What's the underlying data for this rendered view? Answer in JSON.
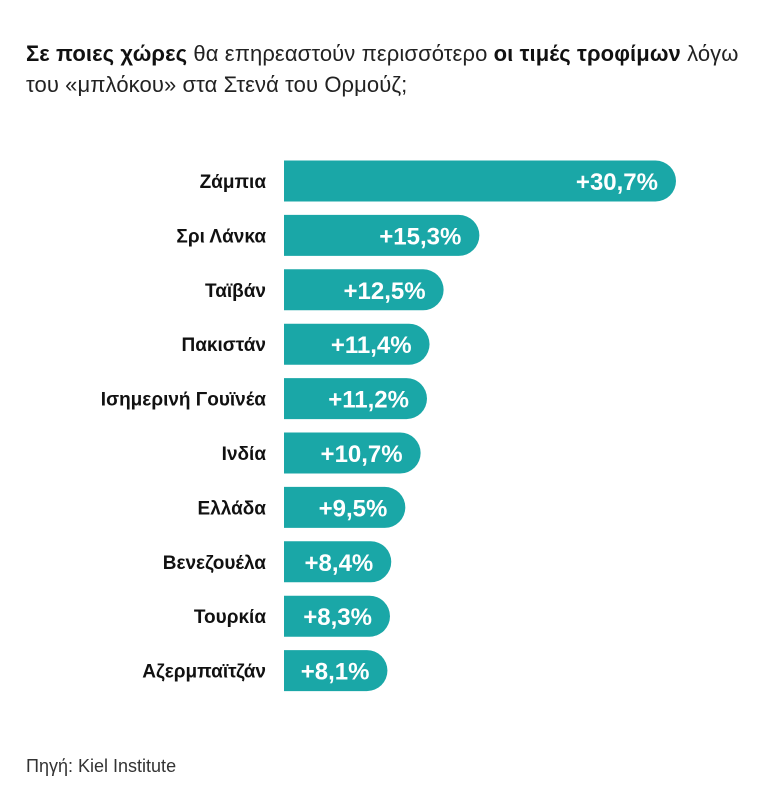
{
  "title": {
    "part1_bold": "Σε ποιες χώρες",
    "part2": " θα επηρεαστούν περισσότερο ",
    "part3_bold": "οι τιμές τροφίμων",
    "part4": " λόγω του «μπλόκου» στα Στενά του Ορμούζ;"
  },
  "source": "Πηγή: Kiel Institute",
  "colors": {
    "bar": "#1aa7a7",
    "text": "#111111",
    "value_text": "#ffffff"
  },
  "chart_data": {
    "type": "bar",
    "orientation": "horizontal",
    "categories": [
      "Ζάμπια",
      "Σρι Λάνκα",
      "Ταϊβάν",
      "Πακιστάν",
      "Ισημερινή Γουϊνέα",
      "Ινδία",
      "Ελλάδα",
      "Βενεζουέλα",
      "Τουρκία",
      "Αζερμπαϊτζάν"
    ],
    "values": [
      30.7,
      15.3,
      12.5,
      11.4,
      11.2,
      10.7,
      9.5,
      8.4,
      8.3,
      8.1
    ],
    "value_labels": [
      "+30,7%",
      "+15,3%",
      "+12,5%",
      "+11,4%",
      "+11,2%",
      "+10,7%",
      "+9,5%",
      "+8,4%",
      "+8,3%",
      "+8,1%"
    ],
    "grid": false
  }
}
